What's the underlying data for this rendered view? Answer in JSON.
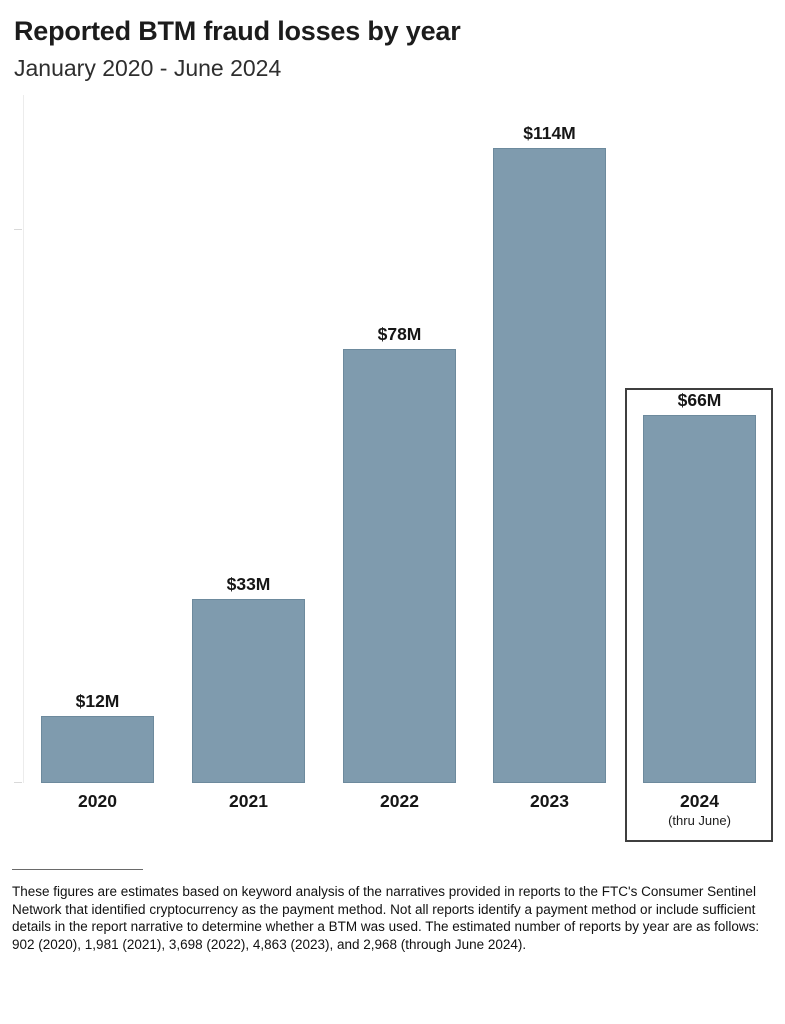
{
  "header": {
    "title": "Reported BTM fraud losses by year",
    "subtitle": "January 2020 - June 2024"
  },
  "chart_data": {
    "type": "bar",
    "title": "Reported BTM fraud losses by year",
    "subtitle": "January 2020 - June 2024",
    "categories": [
      "2020",
      "2021",
      "2022",
      "2023",
      "2024"
    ],
    "category_sublabels": [
      "",
      "",
      "",
      "",
      "(thru June)"
    ],
    "values": [
      12,
      33,
      78,
      114,
      66
    ],
    "value_labels": [
      "$12M",
      "$33M",
      "$78M",
      "$114M",
      "$66M"
    ],
    "ylim": [
      0,
      120
    ],
    "xlabel": "",
    "ylabel": "",
    "grid": false,
    "legend": false,
    "bar_color": "#7f9bae",
    "bar_border_color": "#6d8a9d",
    "highlight": {
      "index": 4,
      "style": "outlined-box",
      "border_color": "#3f3f3f"
    }
  },
  "footnote": {
    "text": "These figures are estimates based on keyword analysis of the narratives provided in reports to the FTC's Consumer Sentinel Network that identified cryptocurrency as the payment method. Not all reports identify a payment method or include sufficient details in the report narrative to determine whether a BTM was used. The estimated number of reports by year are as follows: 902 (2020), 1,981 (2021), 3,698 (2022), 4,863 (2023), and 2,968 (through June 2024)."
  }
}
